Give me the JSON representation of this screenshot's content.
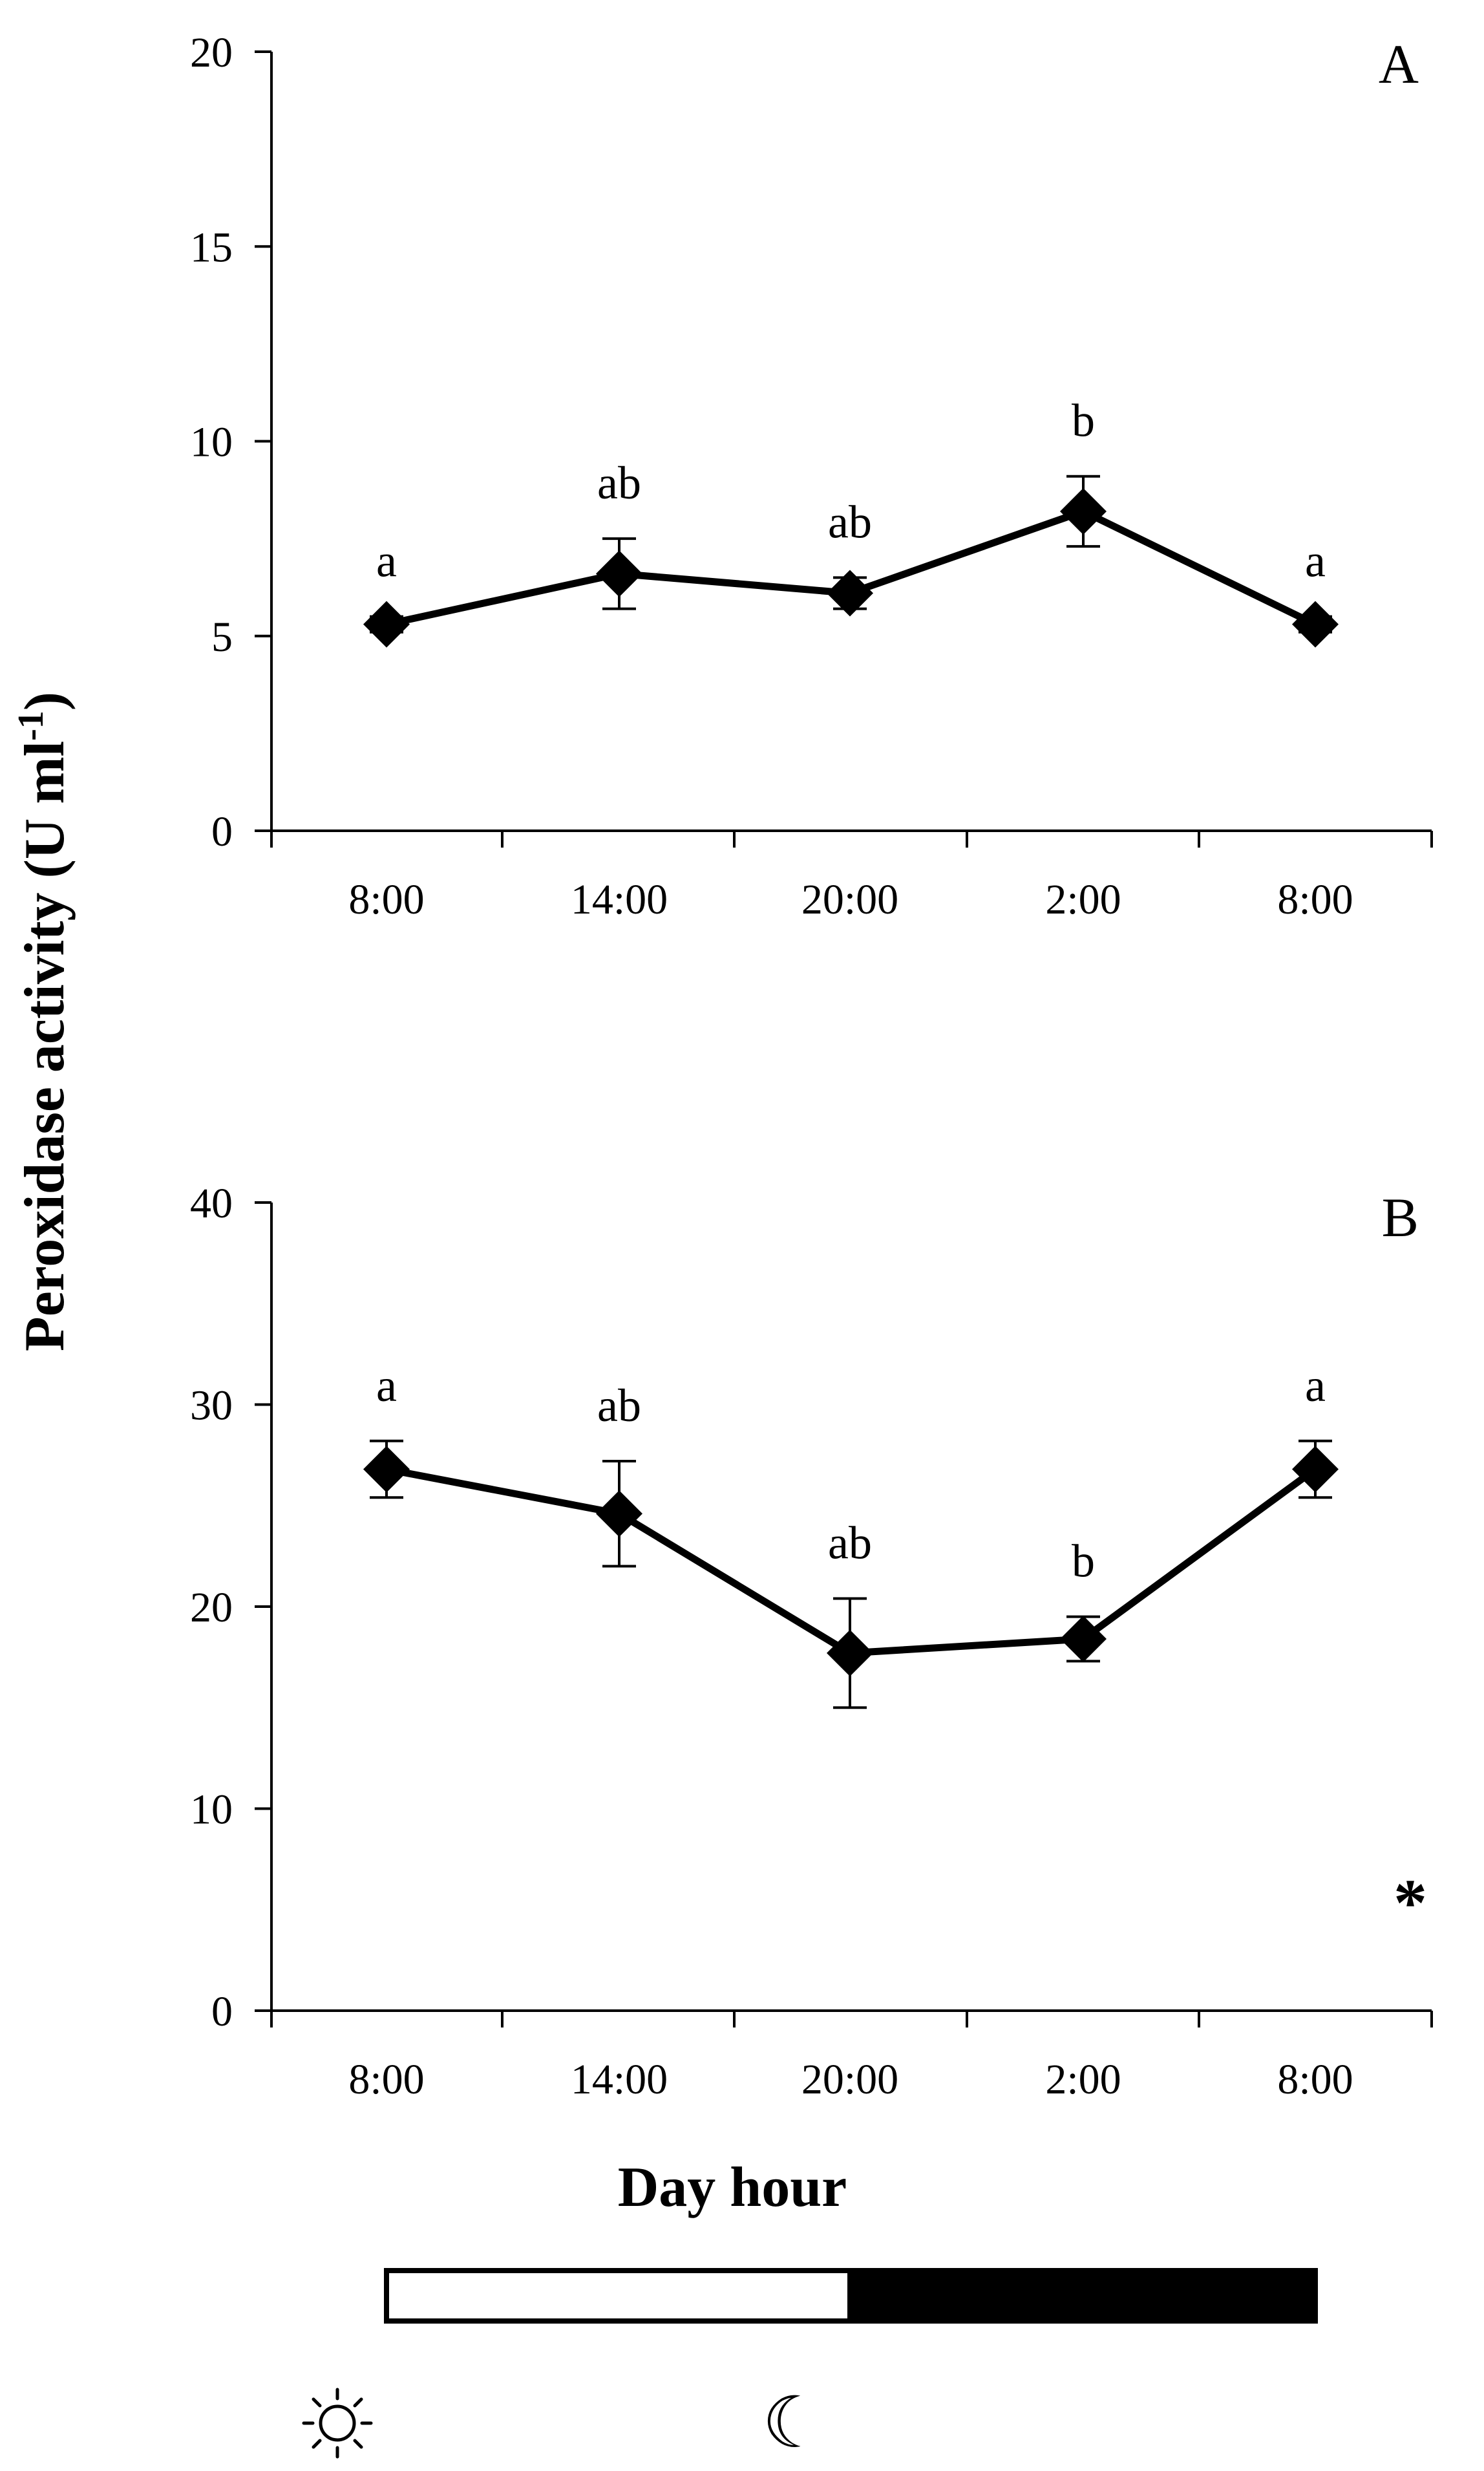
{
  "figure": {
    "ylabel_main": "Peroxidase activity (U ml",
    "ylabel_sup": "-1",
    "ylabel_close": ")",
    "xlabel": "Day hour",
    "photoperiod": [
      {
        "phase": "light",
        "from_index": 0,
        "to_index": 2,
        "color": "#ffffff"
      },
      {
        "phase": "dark",
        "from_index": 2,
        "to_index": 4,
        "color": "#000000"
      }
    ],
    "icons": {
      "light": "sun-icon",
      "dark": "moon-icon"
    },
    "moon_glyph": "☾"
  },
  "chart_data": [
    {
      "type": "line",
      "panel": "A",
      "categories": [
        "8:00",
        "14:00",
        "20:00",
        "2:00",
        "8:00"
      ],
      "values": [
        5.3,
        6.6,
        6.1,
        8.2,
        5.3
      ],
      "errors": [
        0.2,
        0.9,
        0.4,
        0.9,
        0.2
      ],
      "letters": [
        "a",
        "ab",
        "ab",
        "b",
        "a"
      ],
      "ylim": [
        0,
        20
      ],
      "yticks": [
        0,
        5,
        10,
        15,
        20
      ],
      "significance": "",
      "color": "#000000"
    },
    {
      "type": "line",
      "panel": "B",
      "categories": [
        "8:00",
        "14:00",
        "20:00",
        "2:00",
        "8:00"
      ],
      "values": [
        26.8,
        24.6,
        17.7,
        18.4,
        26.8
      ],
      "errors": [
        1.4,
        2.6,
        2.7,
        1.1,
        1.4
      ],
      "letters": [
        "a",
        "ab",
        "ab",
        "b",
        "a"
      ],
      "ylim": [
        0,
        40
      ],
      "yticks": [
        0,
        10,
        20,
        30,
        40
      ],
      "significance": "*",
      "color": "#000000"
    }
  ]
}
